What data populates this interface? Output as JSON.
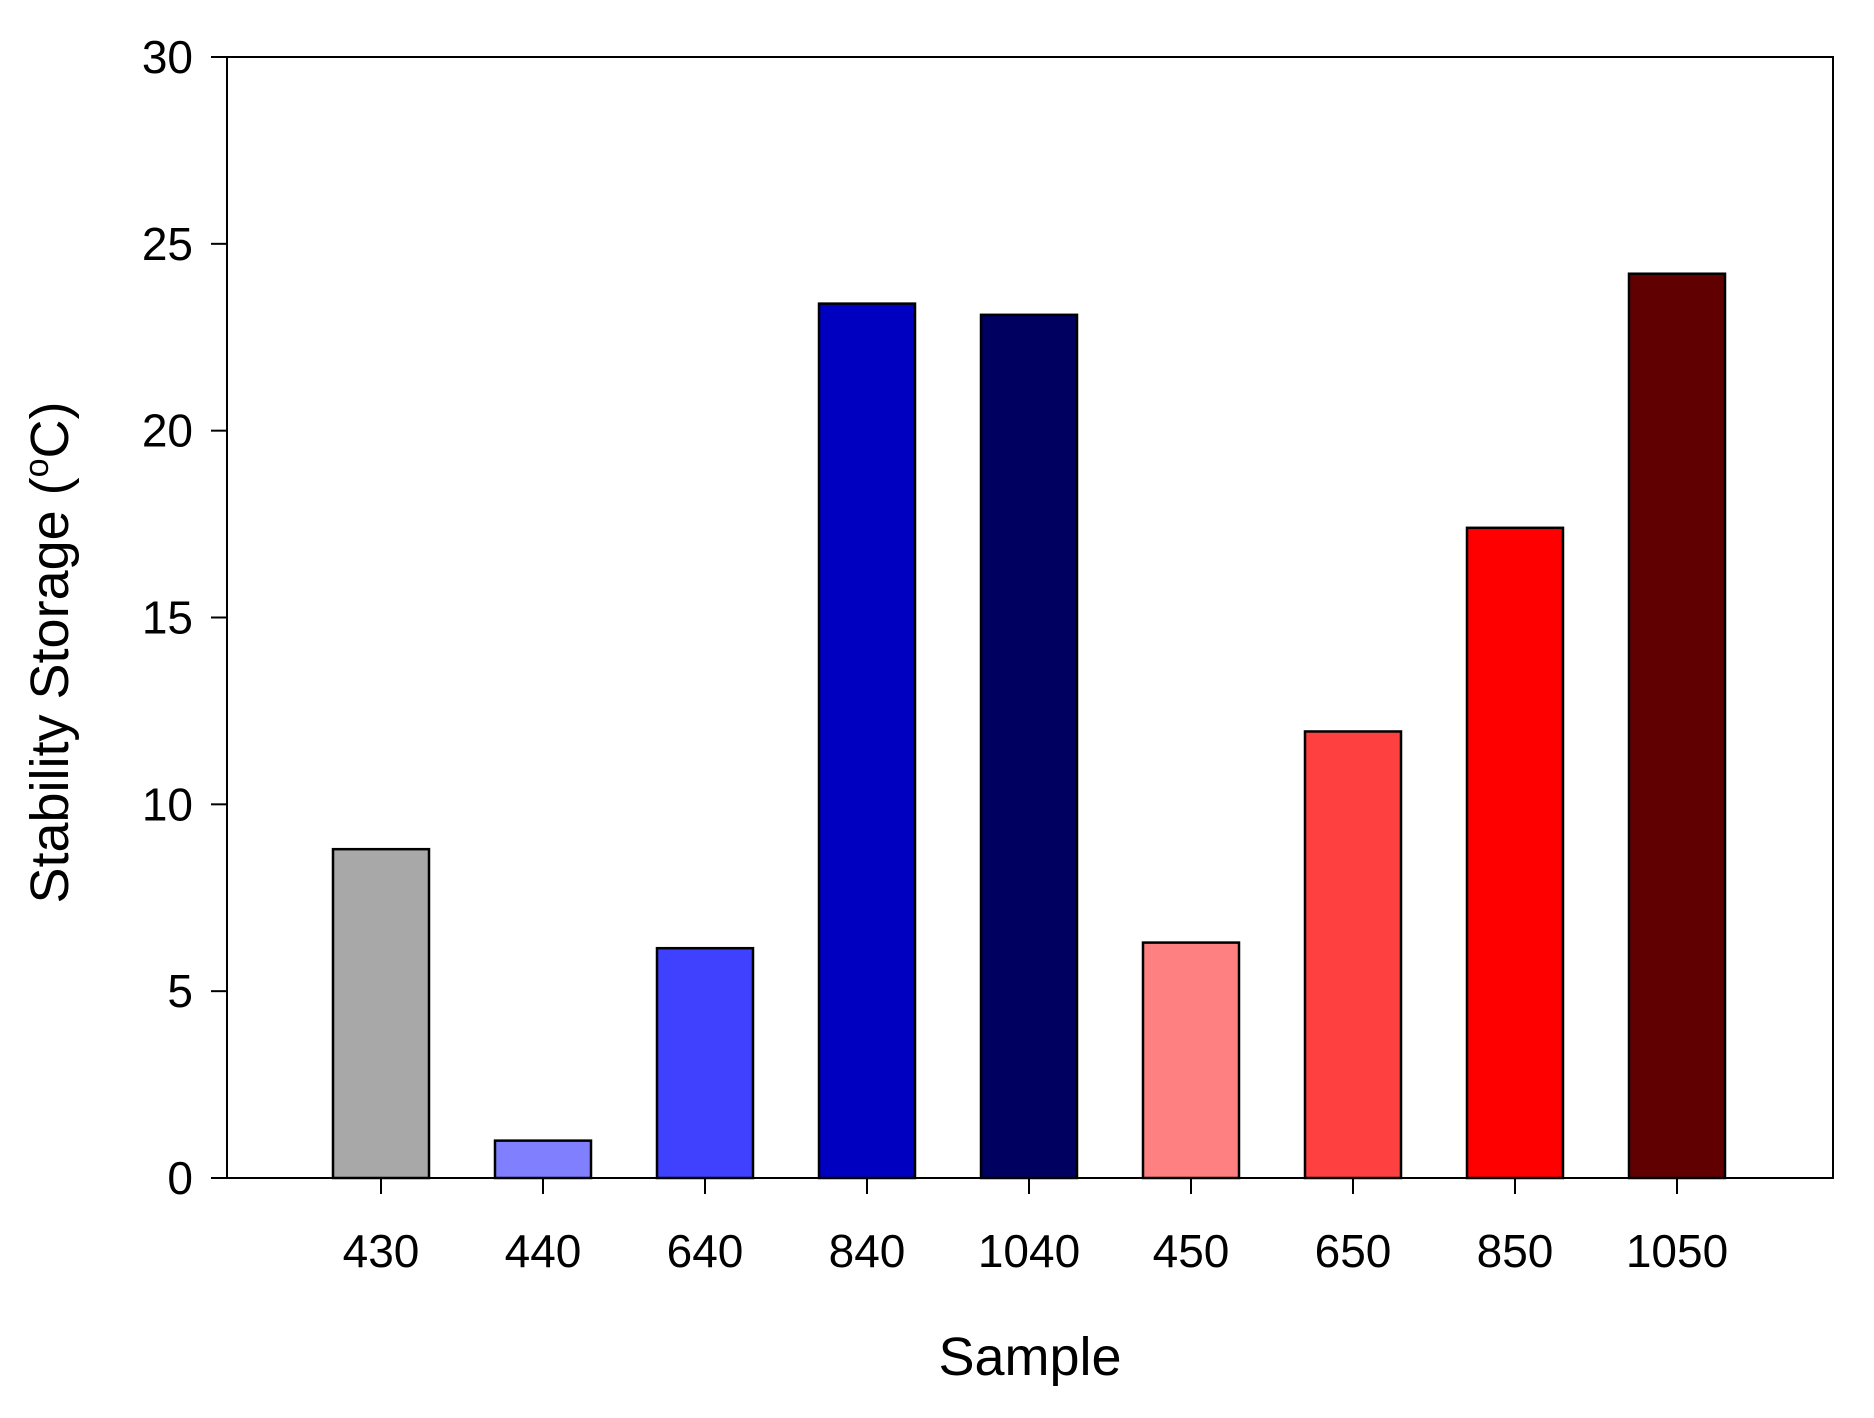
{
  "chart_data": {
    "type": "bar",
    "title": "",
    "xlabel": "Sample",
    "ylabel": "Stability Storage (",
    "ylabel_superscript": "o",
    "ylabel_suffix": "C)",
    "ylim": [
      0,
      30
    ],
    "yticks": [
      0,
      5,
      10,
      15,
      20,
      25,
      30
    ],
    "grid": false,
    "categories": [
      "430",
      "440",
      "640",
      "840",
      "1040",
      "450",
      "650",
      "850",
      "1050"
    ],
    "values": [
      8.8,
      1.0,
      6.15,
      23.4,
      23.1,
      6.3,
      11.95,
      17.4,
      24.2
    ],
    "colors": [
      "#a8a8a8",
      "#8080ff",
      "#4040ff",
      "#0000c0",
      "#000060",
      "#ff8080",
      "#ff4040",
      "#ff0000",
      "#600000"
    ]
  }
}
